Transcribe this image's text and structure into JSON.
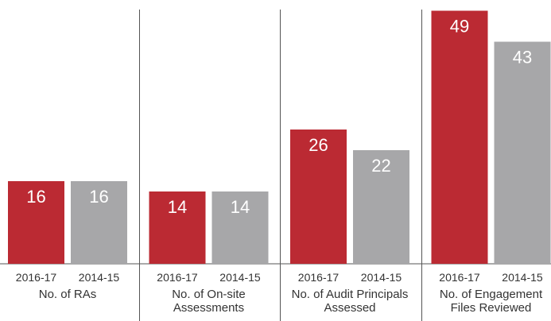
{
  "chart_data": {
    "type": "bar",
    "categories": [
      "No. of RAs",
      "No. of On-site Assessments",
      "No. of Audit Principals Assessed",
      "No. of Engagement Files Reviewed"
    ],
    "series": [
      {
        "name": "2016-17",
        "color": "#bb2a33",
        "values": [
          16,
          14,
          26,
          49
        ]
      },
      {
        "name": "2014-15",
        "color": "#a7a7a9",
        "values": [
          16,
          14,
          22,
          43
        ]
      }
    ]
  }
}
